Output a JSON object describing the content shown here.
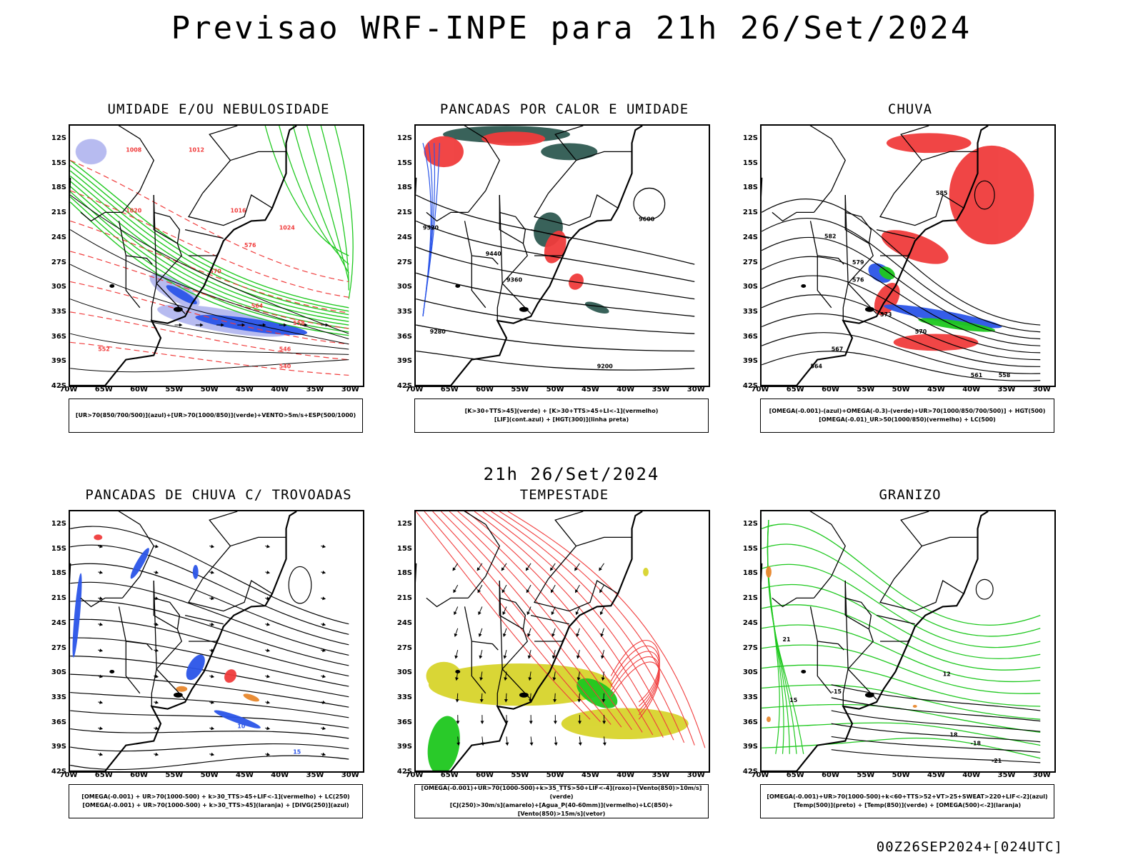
{
  "page": {
    "title": "Previsao WRF-INPE  para 21h 26/Set/2024",
    "subtitle": "21h 26/Set/2024",
    "footer": "00Z26SEP2024+[024UTC]"
  },
  "axes": {
    "lat_labels": [
      "12S",
      "15S",
      "18S",
      "21S",
      "24S",
      "27S",
      "30S",
      "33S",
      "36S",
      "39S",
      "42S"
    ],
    "lon_labels": [
      "70W",
      "65W",
      "60W",
      "55W",
      "50W",
      "45W",
      "40W",
      "35W",
      "30W"
    ]
  },
  "colors": {
    "blue": "#2b55e8",
    "green": "#1ec81e",
    "red": "#f03c3c",
    "lavender": "#b4b8f0",
    "darkteal": "#2f5a52",
    "yellow": "#d8d42c",
    "orange": "#e8872c"
  },
  "panels": [
    {
      "id": "umidade",
      "title": "UMIDADE E/OU NEBULOSIDADE",
      "legend": [
        "[UR>70(850/700/500)](azul)+[UR>70(1000/850)](verde)+VENTO>5m/s+ESP(500/1000)"
      ],
      "contour_labels": [
        "1008",
        "1012",
        "1016",
        "1020",
        "1024",
        "576",
        "570",
        "564",
        "558",
        "552",
        "546",
        "540"
      ]
    },
    {
      "id": "pancadas_calor",
      "title": "PANCADAS POR CALOR E UMIDADE",
      "legend": [
        "[K>30+TTS>45](verde) + [K>30+TTS>45+LI<-1](vermelho)",
        "[LIF](cont.azul) + [HGT(300)](linha preta)"
      ],
      "contour_labels": [
        "9600",
        "9520",
        "9440",
        "9360",
        "9280",
        "9200"
      ]
    },
    {
      "id": "chuva",
      "title": "CHUVA",
      "legend": [
        "[OMEGA(-0.001)-(azul)+OMEGA(-0.3)-(verde)+UR>70(1000/850/700/500)] + HGT(500)",
        "[OMEGA(-0.01)_UR>50(1000/850)(vermelho) + LC(500)"
      ],
      "contour_labels": [
        "585",
        "582",
        "579",
        "576",
        "573",
        "570",
        "567",
        "564",
        "561",
        "558"
      ]
    },
    {
      "id": "pancadas_trovoadas",
      "title": "PANCADAS DE CHUVA C/ TROVOADAS",
      "legend": [
        "[OMEGA(-0.001) + UR>70(1000-500) + k>30_TTS>45+LIF<-1](vermelho) + LC(250)",
        "[OMEGA(-0.001) + UR>70(1000-500) + k>30_TTS>45](laranja) + [DIVG(250)](azul)"
      ],
      "contour_labels": [
        "10",
        "15"
      ]
    },
    {
      "id": "tempestade",
      "title": "TEMPESTADE",
      "legend": [
        "[OMEGA(-0.001)+UR>70(1000-500)+k>35_TTS>50+LIF<-4](roxo)+[Vento(850)>10m/s](verde)",
        "[CJ(250)>30m/s](amarelo)+[Agua_P(40-60mm)](vermelho)+LC(850)+[Vento(850)>15m/s](vetor)"
      ],
      "contour_labels": []
    },
    {
      "id": "granizo",
      "title": "GRANIZO",
      "legend": [
        "[OMEGA(-0.001)+UR>70(1000-500)+k<60+TTS>52+VT>25+SWEAT>220+LIF<-2](azul)",
        "[Temp(500)](preto) + [Temp(850)](verde) + [OMEGA(500)<-2](laranja)"
      ],
      "contour_labels": [
        "-21",
        "-18",
        "-15",
        "12",
        "15",
        "18",
        "21"
      ]
    }
  ]
}
